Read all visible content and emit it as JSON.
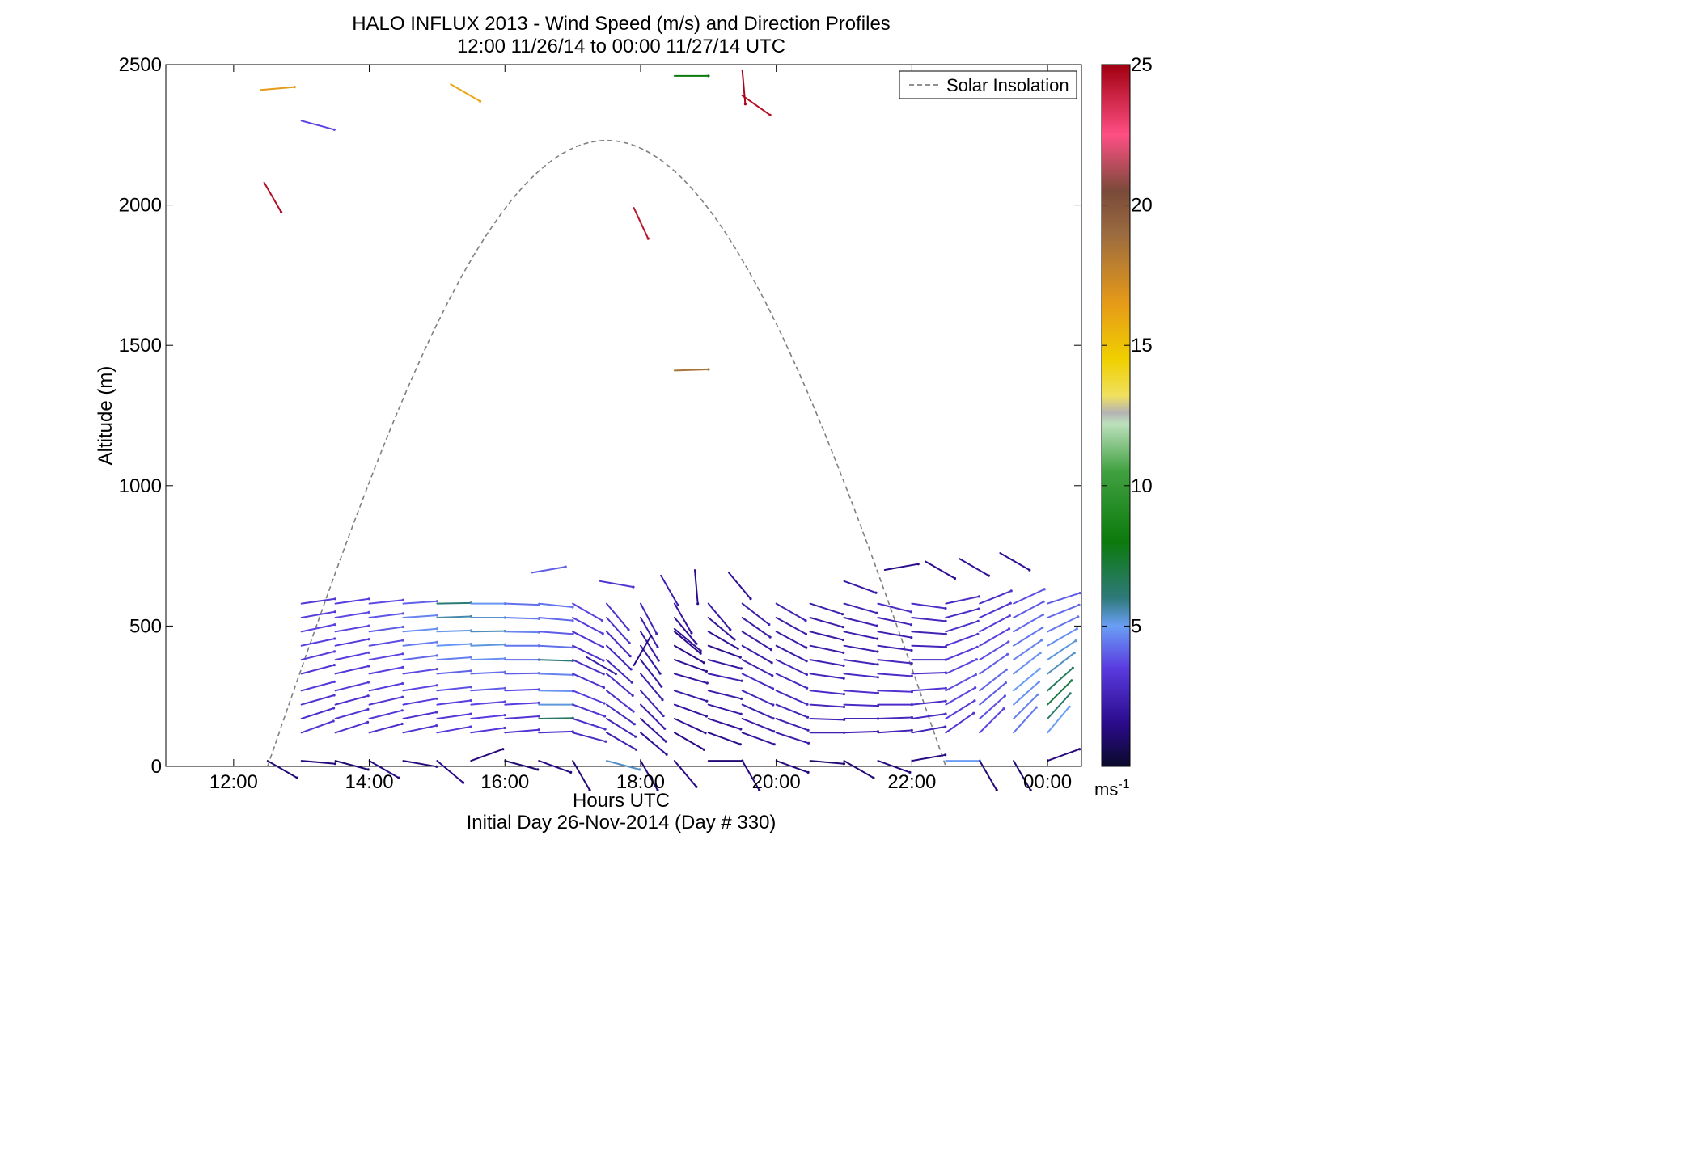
{
  "chart_data": {
    "type": "quiver",
    "title": "HALO INFLUX 2013 - Wind Speed (m/s) and Direction Profiles",
    "subtitle": "12:00 11/26/14 to 00:00 11/27/14  UTC",
    "xlabel": "Hours UTC",
    "xlabel2": "Initial Day 26-Nov-2014 (Day # 330)",
    "ylabel": "Altitude (m)",
    "xlim": [
      11,
      24.5
    ],
    "ylim": [
      0,
      2500
    ],
    "x_ticks": [
      {
        "value": 12,
        "label": "12:00"
      },
      {
        "value": 14,
        "label": "14:00"
      },
      {
        "value": 16,
        "label": "16:00"
      },
      {
        "value": 18,
        "label": "18:00"
      },
      {
        "value": 20,
        "label": "20:00"
      },
      {
        "value": 22,
        "label": "22:00"
      },
      {
        "value": 24,
        "label": "00:00"
      }
    ],
    "y_ticks": [
      {
        "value": 0,
        "label": "0"
      },
      {
        "value": 500,
        "label": "500"
      },
      {
        "value": 1000,
        "label": "1000"
      },
      {
        "value": 1500,
        "label": "1500"
      },
      {
        "value": 2000,
        "label": "2000"
      },
      {
        "value": 2500,
        "label": "2500"
      }
    ],
    "grid": false,
    "legend": {
      "position": "top-right",
      "entries": [
        {
          "label": "Solar Insolation",
          "style": "dashed",
          "color": "#808080"
        }
      ]
    },
    "solar_insolation": {
      "rise_hour": 12.5,
      "set_hour": 22.5,
      "peak_hour": 17.5,
      "peak_altitude": 2230
    },
    "colorbar": {
      "range": [
        0,
        25
      ],
      "ticks": [
        5,
        10,
        15,
        20,
        25
      ],
      "units_label": "ms",
      "units_exponent": "-1",
      "stops": [
        {
          "value": 0,
          "color": "#0a0a2a"
        },
        {
          "value": 1.5,
          "color": "#2a0a8a"
        },
        {
          "value": 3.5,
          "color": "#5a3be0"
        },
        {
          "value": 5,
          "color": "#6a9ef5"
        },
        {
          "value": 6,
          "color": "#2e7a7a"
        },
        {
          "value": 8,
          "color": "#0c7a0c"
        },
        {
          "value": 10.5,
          "color": "#40a040"
        },
        {
          "value": 12.2,
          "color": "#bce0bc"
        },
        {
          "value": 12.6,
          "color": "#b4b4b4"
        },
        {
          "value": 13.2,
          "color": "#f0e060"
        },
        {
          "value": 14.5,
          "color": "#f0d000"
        },
        {
          "value": 16.5,
          "color": "#e69a18"
        },
        {
          "value": 19,
          "color": "#9a6a40"
        },
        {
          "value": 20.5,
          "color": "#7a4a3a"
        },
        {
          "value": 22.5,
          "color": "#ff4f84"
        },
        {
          "value": 25,
          "color": "#a00010"
        }
      ]
    },
    "regular_profiles": {
      "times": [
        13.0,
        13.5,
        14.0,
        14.5,
        15.0,
        15.5,
        16.0,
        16.5,
        17.0,
        17.5,
        18.0,
        18.5,
        19.0,
        19.5,
        20.0,
        20.5,
        21.0,
        21.5,
        22.0,
        22.5,
        23.0,
        23.5,
        24.0
      ],
      "levels": [
        120,
        170,
        220,
        270,
        330,
        380,
        430,
        480,
        530,
        580
      ],
      "speeds": [
        [
          3.2,
          3.0,
          3.1,
          3.3,
          3.2,
          3.4,
          3.5,
          3.6,
          3.4,
          3.3
        ],
        [
          3.1,
          3.2,
          3.0,
          3.4,
          3.3,
          3.5,
          3.4,
          3.6,
          3.7,
          3.5
        ],
        [
          3.0,
          3.3,
          3.2,
          3.4,
          3.5,
          3.6,
          3.8,
          4.0,
          3.9,
          3.7
        ],
        [
          3.2,
          3.1,
          3.4,
          3.6,
          3.7,
          4.2,
          4.5,
          4.8,
          4.6,
          4.1
        ],
        [
          3.4,
          3.3,
          3.5,
          3.8,
          4.1,
          4.5,
          4.9,
          5.1,
          5.6,
          6.1
        ],
        [
          3.3,
          3.5,
          3.6,
          4.0,
          4.3,
          4.8,
          5.2,
          5.5,
          5.3,
          4.9
        ],
        [
          3.1,
          3.2,
          3.4,
          3.7,
          4.0,
          4.2,
          4.4,
          4.6,
          4.5,
          4.3
        ],
        [
          3.0,
          6.4,
          5.2,
          4.8,
          4.6,
          6.0,
          4.3,
          4.0,
          4.2,
          4.4
        ],
        [
          2.8,
          3.0,
          3.2,
          3.4,
          3.1,
          2.9,
          3.0,
          3.2,
          3.4,
          3.6
        ],
        [
          2.4,
          2.6,
          2.8,
          3.0,
          2.9,
          2.7,
          2.6,
          2.8,
          3.0,
          3.2
        ],
        [
          1.8,
          2.0,
          2.2,
          2.5,
          2.3,
          2.1,
          2.0,
          2.2,
          2.4,
          2.6
        ],
        [
          1.5,
          1.8,
          2.0,
          2.2,
          2.0,
          1.7,
          1.5,
          1.6,
          1.8,
          2.0
        ],
        [
          1.6,
          1.9,
          2.1,
          2.3,
          2.4,
          2.0,
          1.7,
          1.8,
          1.9,
          2.1
        ],
        [
          2.0,
          2.2,
          2.4,
          2.6,
          2.8,
          2.5,
          2.3,
          2.1,
          2.2,
          2.4
        ],
        [
          2.2,
          2.4,
          2.6,
          2.8,
          2.7,
          2.5,
          2.3,
          2.2,
          2.3,
          2.5
        ],
        [
          2.3,
          2.5,
          2.7,
          2.9,
          2.6,
          2.4,
          2.2,
          2.1,
          2.2,
          2.3
        ],
        [
          2.4,
          2.6,
          2.8,
          3.0,
          2.8,
          2.6,
          2.4,
          2.3,
          2.4,
          2.5
        ],
        [
          2.5,
          2.7,
          2.9,
          3.1,
          2.9,
          2.7,
          2.5,
          2.4,
          2.6,
          2.8
        ],
        [
          2.6,
          2.8,
          3.0,
          3.2,
          3.0,
          2.8,
          2.6,
          2.5,
          2.7,
          2.9
        ],
        [
          3.2,
          3.4,
          3.6,
          3.8,
          3.6,
          3.4,
          3.2,
          3.0,
          2.9,
          2.8
        ],
        [
          3.6,
          3.8,
          4.0,
          4.2,
          4.0,
          3.8,
          3.6,
          3.4,
          3.2,
          3.0
        ],
        [
          4.4,
          4.6,
          4.8,
          5.0,
          4.8,
          4.6,
          4.4,
          4.2,
          4.0,
          3.8
        ],
        [
          5.0,
          6.2,
          7.0,
          6.4,
          5.4,
          5.2,
          4.8,
          4.4,
          4.2,
          4.0
        ]
      ],
      "directions": [
        [
          250,
          252,
          254,
          255,
          255,
          256,
          258,
          258,
          260,
          262
        ],
        [
          252,
          254,
          255,
          256,
          257,
          258,
          259,
          260,
          261,
          262
        ],
        [
          255,
          256,
          257,
          258,
          259,
          260,
          261,
          262,
          263,
          264
        ],
        [
          258,
          259,
          260,
          261,
          262,
          263,
          264,
          265,
          266,
          266
        ],
        [
          260,
          262,
          263,
          264,
          265,
          266,
          267,
          268,
          268,
          269
        ],
        [
          262,
          264,
          265,
          266,
          267,
          268,
          268,
          269,
          270,
          270
        ],
        [
          265,
          266,
          267,
          268,
          269,
          270,
          270,
          271,
          272,
          272
        ],
        [
          268,
          269,
          270,
          271,
          272,
          272,
          273,
          274,
          275,
          276
        ],
        [
          285,
          288,
          290,
          292,
          294,
          295,
          296,
          297,
          298,
          300
        ],
        [
          300,
          302,
          305,
          308,
          310,
          312,
          314,
          316,
          318,
          320
        ],
        [
          310,
          312,
          315,
          318,
          320,
          322,
          325,
          328,
          330,
          332
        ],
        [
          300,
          295,
          290,
          288,
          286,
          290,
          300,
          310,
          320,
          330
        ],
        [
          290,
          288,
          286,
          284,
          282,
          285,
          290,
          300,
          310,
          320
        ],
        [
          290,
          292,
          294,
          295,
          296,
          298,
          300,
          302,
          305,
          308
        ],
        [
          288,
          290,
          292,
          294,
          295,
          296,
          297,
          298,
          299,
          300
        ],
        [
          270,
          272,
          274,
          276,
          278,
          280,
          282,
          284,
          286,
          288
        ],
        [
          268,
          270,
          272,
          274,
          276,
          278,
          280,
          282,
          284,
          286
        ],
        [
          266,
          268,
          270,
          272,
          274,
          276,
          278,
          280,
          282,
          284
        ],
        [
          260,
          262,
          264,
          266,
          268,
          270,
          272,
          274,
          276,
          278
        ],
        [
          235,
          238,
          240,
          242,
          245,
          248,
          250,
          252,
          255,
          258
        ],
        [
          225,
          228,
          230,
          232,
          235,
          238,
          240,
          242,
          245,
          248
        ],
        [
          222,
          225,
          228,
          230,
          232,
          235,
          238,
          240,
          242,
          245
        ],
        [
          220,
          222,
          225,
          228,
          232,
          236,
          240,
          244,
          248,
          252
        ]
      ]
    },
    "upper_profiles": {
      "points": [
        {
          "t": 18.3,
          "z": 680,
          "speed": 2.4,
          "dir": 330
        },
        {
          "t": 18.8,
          "z": 700,
          "speed": 1.6,
          "dir": 355
        },
        {
          "t": 19.3,
          "z": 690,
          "speed": 1.8,
          "dir": 320
        },
        {
          "t": 21.0,
          "z": 660,
          "speed": 2.2,
          "dir": 290
        },
        {
          "t": 21.6,
          "z": 700,
          "speed": 1.5,
          "dir": 260
        },
        {
          "t": 22.2,
          "z": 730,
          "speed": 1.6,
          "dir": 300
        },
        {
          "t": 22.7,
          "z": 740,
          "speed": 1.8,
          "dir": 300
        },
        {
          "t": 23.3,
          "z": 760,
          "speed": 1.7,
          "dir": 300
        },
        {
          "t": 17.4,
          "z": 660,
          "speed": 3.2,
          "dir": 280
        },
        {
          "t": 16.4,
          "z": 690,
          "speed": 4.0,
          "dir": 260
        }
      ]
    },
    "surface_profile": {
      "times": [
        12.5,
        13.0,
        13.5,
        14.0,
        14.5,
        15.0,
        15.5,
        16.0,
        16.5,
        17.0,
        17.5,
        18.0,
        18.5,
        19.0,
        19.5,
        20.0,
        20.5,
        21.0,
        21.5,
        22.0,
        22.5,
        23.0,
        23.5,
        24.0
      ],
      "speeds": [
        1.2,
        1.3,
        1.1,
        1.4,
        1.2,
        1.5,
        1.3,
        1.1,
        1.4,
        1.2,
        5.4,
        1.3,
        1.5,
        1.2,
        1.4,
        1.3,
        1.1,
        1.2,
        1.3,
        1.4,
        5.0,
        1.2,
        1.1,
        1.3
      ],
      "directions": [
        300,
        275,
        285,
        300,
        280,
        310,
        250,
        285,
        290,
        330,
        285,
        330,
        320,
        270,
        330,
        290,
        275,
        300,
        290,
        260,
        270,
        330,
        330,
        250
      ]
    },
    "isolated_vectors": [
      {
        "t": 12.4,
        "z": 2410,
        "speed": 16.5,
        "dir": 265
      },
      {
        "t": 13.0,
        "z": 2300,
        "speed": 3.6,
        "dir": 285
      },
      {
        "t": 12.45,
        "z": 2080,
        "speed": 24.5,
        "dir": 330
      },
      {
        "t": 15.2,
        "z": 2430,
        "speed": 16.0,
        "dir": 300
      },
      {
        "t": 18.5,
        "z": 2460,
        "speed": 8.0,
        "dir": 270
      },
      {
        "t": 19.5,
        "z": 2390,
        "speed": 24.5,
        "dir": 305
      },
      {
        "t": 19.5,
        "z": 2480,
        "speed": 24.8,
        "dir": 355
      },
      {
        "t": 17.9,
        "z": 1990,
        "speed": 24.3,
        "dir": 335
      },
      {
        "t": 18.5,
        "z": 1410,
        "speed": 18.5,
        "dir": 268
      },
      {
        "t": 18.5,
        "z": 490,
        "speed": 1.8,
        "dir": 310
      },
      {
        "t": 17.2,
        "z": 390,
        "speed": 2.2,
        "dir": 300
      },
      {
        "t": 17.9,
        "z": 360,
        "speed": 1.5,
        "dir": 210
      }
    ]
  }
}
